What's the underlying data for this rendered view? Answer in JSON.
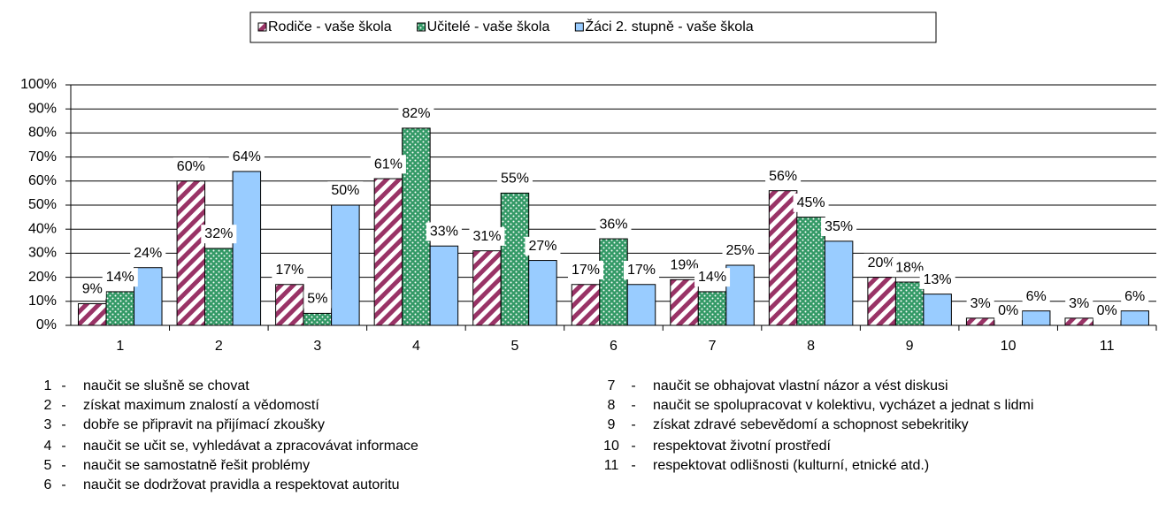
{
  "chart_data": {
    "type": "bar",
    "categories": [
      "1",
      "2",
      "3",
      "4",
      "5",
      "6",
      "7",
      "8",
      "9",
      "10",
      "11"
    ],
    "series": [
      {
        "name": "Rodiče - vaše škola",
        "color": "#993366",
        "pattern": "stripes",
        "values": [
          9,
          60,
          17,
          61,
          31,
          17,
          19,
          56,
          20,
          3,
          3
        ],
        "value_labels": [
          "9%",
          "60%",
          "17%",
          "61%",
          "31%",
          "17%",
          "19%",
          "56%",
          "20%",
          "3%",
          "3%"
        ]
      },
      {
        "name": "Učitelé - vaše škola",
        "color": "#339966",
        "pattern": "dots",
        "values": [
          14,
          32,
          5,
          82,
          55,
          36,
          14,
          45,
          18,
          0,
          0
        ],
        "value_labels": [
          "14%",
          "32%",
          "5%",
          "82%",
          "55%",
          "36%",
          "14%",
          "45%",
          "18%",
          "0%",
          "0%"
        ]
      },
      {
        "name": "Žáci 2. stupně - vaše škola",
        "color": "#99ccff",
        "pattern": "solid",
        "values": [
          24,
          64,
          50,
          33,
          27,
          17,
          25,
          35,
          13,
          6,
          6
        ],
        "value_labels": [
          "24%",
          "64%",
          "50%",
          "33%",
          "27%",
          "17%",
          "25%",
          "35%",
          "13%",
          "6%",
          "6%"
        ]
      }
    ],
    "ylim": [
      0,
      100
    ],
    "yticks": [
      {
        "value": 0,
        "label": "0%"
      },
      {
        "value": 10,
        "label": "10%"
      },
      {
        "value": 20,
        "label": "20%"
      },
      {
        "value": 30,
        "label": "30%"
      },
      {
        "value": 40,
        "label": "40%"
      },
      {
        "value": 50,
        "label": "50%"
      },
      {
        "value": 60,
        "label": "60%"
      },
      {
        "value": 70,
        "label": "70%"
      },
      {
        "value": 80,
        "label": "80%"
      },
      {
        "value": 90,
        "label": "90%"
      },
      {
        "value": 100,
        "label": "100%"
      }
    ],
    "grid": true,
    "legend": "top",
    "notes": [
      {
        "number": "1",
        "dash": "-",
        "text": "naučit se slušně se chovat"
      },
      {
        "number": "2",
        "dash": "-",
        "text": "získat maximum znalostí a vědomostí"
      },
      {
        "number": "3",
        "dash": "-",
        "text": "dobře se připravit na přijímací zkoušky"
      },
      {
        "number": "4",
        "dash": "-",
        "text": "naučit se učit se, vyhledávat a zpracovávat informace"
      },
      {
        "number": "5",
        "dash": "-",
        "text": "naučit se samostatně řešit problémy"
      },
      {
        "number": "6",
        "dash": "-",
        "text": "naučit se dodržovat pravidla a respektovat autoritu"
      },
      {
        "number": "7",
        "dash": "-",
        "text": "naučit se obhajovat vlastní názor a vést diskusi"
      },
      {
        "number": "8",
        "dash": "-",
        "text": "naučit se spolupracovat v kolektivu, vycházet a jednat s lidmi"
      },
      {
        "number": "9",
        "dash": "-",
        "text": "získat zdravé sebevědomí a schopnost sebekritiky"
      },
      {
        "number": "10",
        "dash": "-",
        "text": "respektovat životní prostředí"
      },
      {
        "number": "11",
        "dash": "-",
        "text": "respektovat odlišnosti (kulturní, etnické atd.)"
      }
    ]
  }
}
